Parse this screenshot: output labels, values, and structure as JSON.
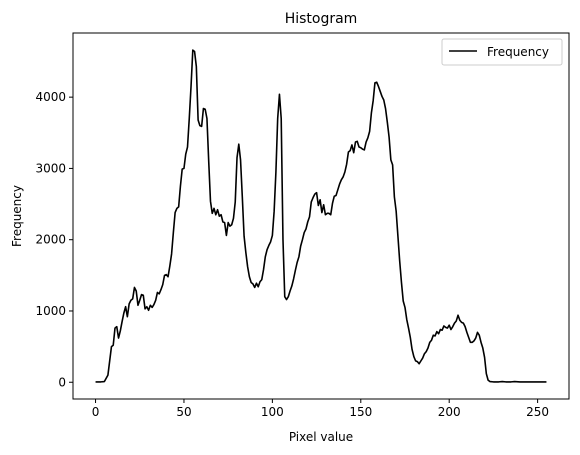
{
  "chart_data": {
    "type": "line",
    "title": "Histogram",
    "xlabel": "Pixel value",
    "ylabel": "Frequency",
    "xlim": [
      -12.75,
      267.75
    ],
    "ylim": [
      -235,
      4900
    ],
    "xticks": [
      0,
      50,
      100,
      150,
      200,
      250
    ],
    "yticks": [
      0,
      1000,
      2000,
      3000,
      4000
    ],
    "grid": false,
    "legend_position": "top-right",
    "series": [
      {
        "name": "Frequency",
        "color": "#000000",
        "points": [
          [
            0,
            5
          ],
          [
            3,
            5
          ],
          [
            5,
            10
          ],
          [
            7,
            100
          ],
          [
            8,
            300
          ],
          [
            9,
            500
          ],
          [
            10,
            520
          ],
          [
            11,
            760
          ],
          [
            12,
            780
          ],
          [
            13,
            620
          ],
          [
            14,
            720
          ],
          [
            15,
            850
          ],
          [
            16,
            970
          ],
          [
            17,
            1060
          ],
          [
            18,
            920
          ],
          [
            19,
            1100
          ],
          [
            20,
            1150
          ],
          [
            21,
            1170
          ],
          [
            22,
            1330
          ],
          [
            23,
            1280
          ],
          [
            24,
            1080
          ],
          [
            25,
            1150
          ],
          [
            26,
            1230
          ],
          [
            27,
            1220
          ],
          [
            28,
            1030
          ],
          [
            29,
            1060
          ],
          [
            30,
            1010
          ],
          [
            31,
            1080
          ],
          [
            32,
            1050
          ],
          [
            33,
            1090
          ],
          [
            34,
            1150
          ],
          [
            35,
            1260
          ],
          [
            36,
            1240
          ],
          [
            37,
            1300
          ],
          [
            38,
            1370
          ],
          [
            39,
            1500
          ],
          [
            40,
            1510
          ],
          [
            41,
            1480
          ],
          [
            42,
            1630
          ],
          [
            43,
            1800
          ],
          [
            44,
            2100
          ],
          [
            45,
            2380
          ],
          [
            46,
            2440
          ],
          [
            47,
            2460
          ],
          [
            48,
            2750
          ],
          [
            49,
            2990
          ],
          [
            50,
            3000
          ],
          [
            51,
            3200
          ],
          [
            52,
            3300
          ],
          [
            53,
            3700
          ],
          [
            54,
            4150
          ],
          [
            55,
            4660
          ],
          [
            56,
            4640
          ],
          [
            57,
            4430
          ],
          [
            58,
            3680
          ],
          [
            59,
            3600
          ],
          [
            60,
            3590
          ],
          [
            61,
            3840
          ],
          [
            62,
            3830
          ],
          [
            63,
            3700
          ],
          [
            64,
            3100
          ],
          [
            65,
            2540
          ],
          [
            66,
            2370
          ],
          [
            67,
            2440
          ],
          [
            68,
            2350
          ],
          [
            69,
            2420
          ],
          [
            70,
            2330
          ],
          [
            71,
            2350
          ],
          [
            72,
            2250
          ],
          [
            73,
            2240
          ],
          [
            74,
            2060
          ],
          [
            75,
            2240
          ],
          [
            76,
            2190
          ],
          [
            77,
            2210
          ],
          [
            78,
            2300
          ],
          [
            79,
            2530
          ],
          [
            80,
            3150
          ],
          [
            81,
            3340
          ],
          [
            82,
            3120
          ],
          [
            83,
            2600
          ],
          [
            84,
            2050
          ],
          [
            85,
            1820
          ],
          [
            86,
            1620
          ],
          [
            87,
            1480
          ],
          [
            88,
            1400
          ],
          [
            89,
            1380
          ],
          [
            90,
            1330
          ],
          [
            91,
            1390
          ],
          [
            92,
            1340
          ],
          [
            93,
            1410
          ],
          [
            94,
            1440
          ],
          [
            95,
            1580
          ],
          [
            96,
            1760
          ],
          [
            97,
            1860
          ],
          [
            98,
            1920
          ],
          [
            99,
            1970
          ],
          [
            100,
            2060
          ],
          [
            101,
            2400
          ],
          [
            102,
            2950
          ],
          [
            103,
            3700
          ],
          [
            104,
            4040
          ],
          [
            105,
            3700
          ],
          [
            106,
            2000
          ],
          [
            107,
            1200
          ],
          [
            108,
            1160
          ],
          [
            109,
            1200
          ],
          [
            110,
            1280
          ],
          [
            111,
            1350
          ],
          [
            112,
            1450
          ],
          [
            113,
            1570
          ],
          [
            114,
            1680
          ],
          [
            115,
            1760
          ],
          [
            116,
            1910
          ],
          [
            117,
            2000
          ],
          [
            118,
            2100
          ],
          [
            119,
            2150
          ],
          [
            120,
            2250
          ],
          [
            121,
            2320
          ],
          [
            122,
            2530
          ],
          [
            123,
            2590
          ],
          [
            124,
            2640
          ],
          [
            125,
            2660
          ],
          [
            126,
            2480
          ],
          [
            127,
            2560
          ],
          [
            128,
            2380
          ],
          [
            129,
            2490
          ],
          [
            130,
            2350
          ],
          [
            131,
            2370
          ],
          [
            132,
            2370
          ],
          [
            133,
            2350
          ],
          [
            134,
            2510
          ],
          [
            135,
            2610
          ],
          [
            136,
            2620
          ],
          [
            137,
            2700
          ],
          [
            138,
            2780
          ],
          [
            139,
            2840
          ],
          [
            140,
            2880
          ],
          [
            141,
            2950
          ],
          [
            142,
            3060
          ],
          [
            143,
            3230
          ],
          [
            144,
            3250
          ],
          [
            145,
            3330
          ],
          [
            146,
            3220
          ],
          [
            147,
            3370
          ],
          [
            148,
            3380
          ],
          [
            149,
            3300
          ],
          [
            150,
            3290
          ],
          [
            151,
            3270
          ],
          [
            152,
            3260
          ],
          [
            153,
            3370
          ],
          [
            154,
            3430
          ],
          [
            155,
            3520
          ],
          [
            156,
            3780
          ],
          [
            157,
            3950
          ],
          [
            158,
            4200
          ],
          [
            159,
            4210
          ],
          [
            160,
            4150
          ],
          [
            161,
            4080
          ],
          [
            162,
            4010
          ],
          [
            163,
            3960
          ],
          [
            164,
            3840
          ],
          [
            165,
            3650
          ],
          [
            166,
            3440
          ],
          [
            167,
            3120
          ],
          [
            168,
            3050
          ],
          [
            169,
            2600
          ],
          [
            170,
            2400
          ],
          [
            171,
            2050
          ],
          [
            172,
            1700
          ],
          [
            173,
            1400
          ],
          [
            174,
            1140
          ],
          [
            175,
            1050
          ],
          [
            176,
            880
          ],
          [
            177,
            760
          ],
          [
            178,
            630
          ],
          [
            179,
            460
          ],
          [
            180,
            360
          ],
          [
            181,
            300
          ],
          [
            182,
            290
          ],
          [
            183,
            260
          ],
          [
            184,
            300
          ],
          [
            185,
            340
          ],
          [
            186,
            400
          ],
          [
            187,
            430
          ],
          [
            188,
            480
          ],
          [
            189,
            560
          ],
          [
            190,
            590
          ],
          [
            191,
            660
          ],
          [
            192,
            650
          ],
          [
            193,
            710
          ],
          [
            194,
            680
          ],
          [
            195,
            740
          ],
          [
            196,
            730
          ],
          [
            197,
            790
          ],
          [
            198,
            770
          ],
          [
            199,
            760
          ],
          [
            200,
            800
          ],
          [
            201,
            740
          ],
          [
            202,
            780
          ],
          [
            203,
            830
          ],
          [
            204,
            860
          ],
          [
            205,
            940
          ],
          [
            206,
            870
          ],
          [
            207,
            840
          ],
          [
            208,
            830
          ],
          [
            209,
            780
          ],
          [
            210,
            700
          ],
          [
            211,
            630
          ],
          [
            212,
            560
          ],
          [
            213,
            560
          ],
          [
            214,
            580
          ],
          [
            215,
            620
          ],
          [
            216,
            700
          ],
          [
            217,
            660
          ],
          [
            218,
            560
          ],
          [
            219,
            480
          ],
          [
            220,
            350
          ],
          [
            221,
            120
          ],
          [
            222,
            30
          ],
          [
            223,
            10
          ],
          [
            225,
            5
          ],
          [
            228,
            5
          ],
          [
            230,
            10
          ],
          [
            232,
            5
          ],
          [
            235,
            5
          ],
          [
            237,
            10
          ],
          [
            240,
            5
          ],
          [
            245,
            5
          ],
          [
            250,
            5
          ],
          [
            255,
            5
          ]
        ]
      }
    ]
  }
}
